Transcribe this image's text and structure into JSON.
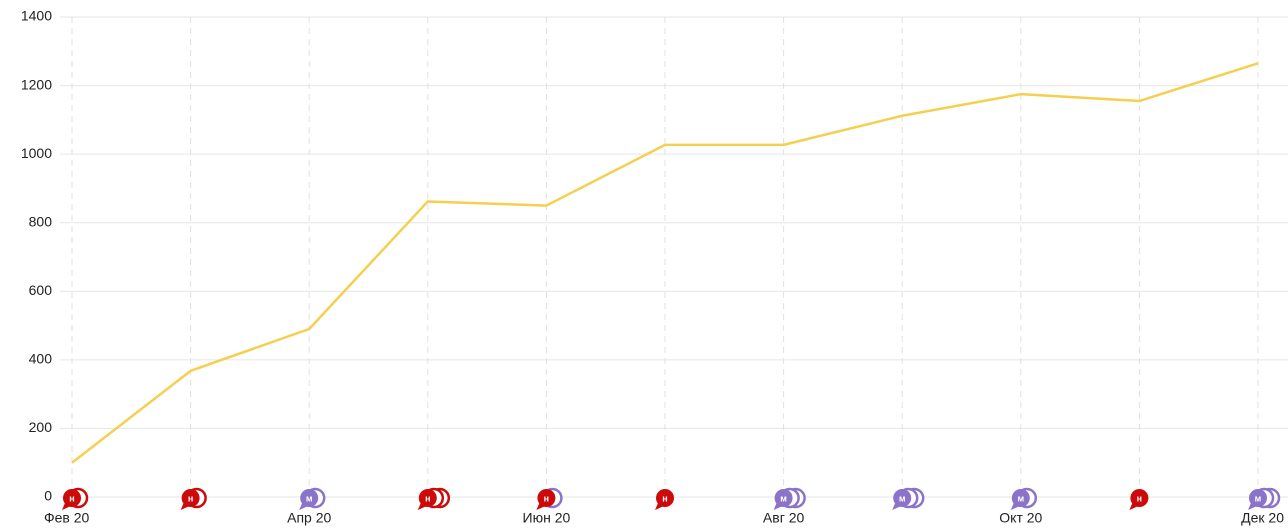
{
  "chart_data": {
    "type": "line",
    "categories": [
      "Фев 20",
      null,
      "Апр 20",
      null,
      "Июн 20",
      null,
      "Авг 20",
      null,
      "Окт 20",
      null,
      "Дек 20"
    ],
    "values": [
      100,
      368,
      490,
      862,
      850,
      1027,
      1027,
      1112,
      1175,
      1155,
      1265
    ],
    "color": "#f5cf4f",
    "ylim": [
      0,
      1400
    ],
    "yticks": [
      0,
      200,
      400,
      600,
      800,
      1000,
      1200,
      1400
    ],
    "grid": true,
    "annotations": [
      {
        "label": "н",
        "colors": [
          "#cc0a0a",
          "#cc0a0a"
        ]
      },
      {
        "label": "н",
        "colors": [
          "#cc0a0a",
          "#cc0a0a"
        ]
      },
      {
        "label": "м",
        "colors": [
          "#8a73c9",
          "#8a73c9"
        ]
      },
      {
        "label": "н",
        "colors": [
          "#cc0a0a",
          "#cc0a0a",
          "#cc0a0a"
        ]
      },
      {
        "label": "н",
        "colors": [
          "#cc0a0a",
          "#8a73c9"
        ]
      },
      {
        "label": "н",
        "colors": [
          "#cc0a0a"
        ]
      },
      {
        "label": "м",
        "colors": [
          "#8a73c9",
          "#8a73c9",
          "#8a73c9"
        ]
      },
      {
        "label": "м",
        "colors": [
          "#8a73c9",
          "#8a73c9",
          "#8a73c9"
        ]
      },
      {
        "label": "м",
        "colors": [
          "#8a73c9",
          "#8a73c9"
        ]
      },
      {
        "label": "н",
        "colors": [
          "#cc0a0a"
        ]
      },
      {
        "label": "м",
        "colors": [
          "#8a73c9",
          "#8a73c9",
          "#8a73c9"
        ]
      }
    ]
  }
}
